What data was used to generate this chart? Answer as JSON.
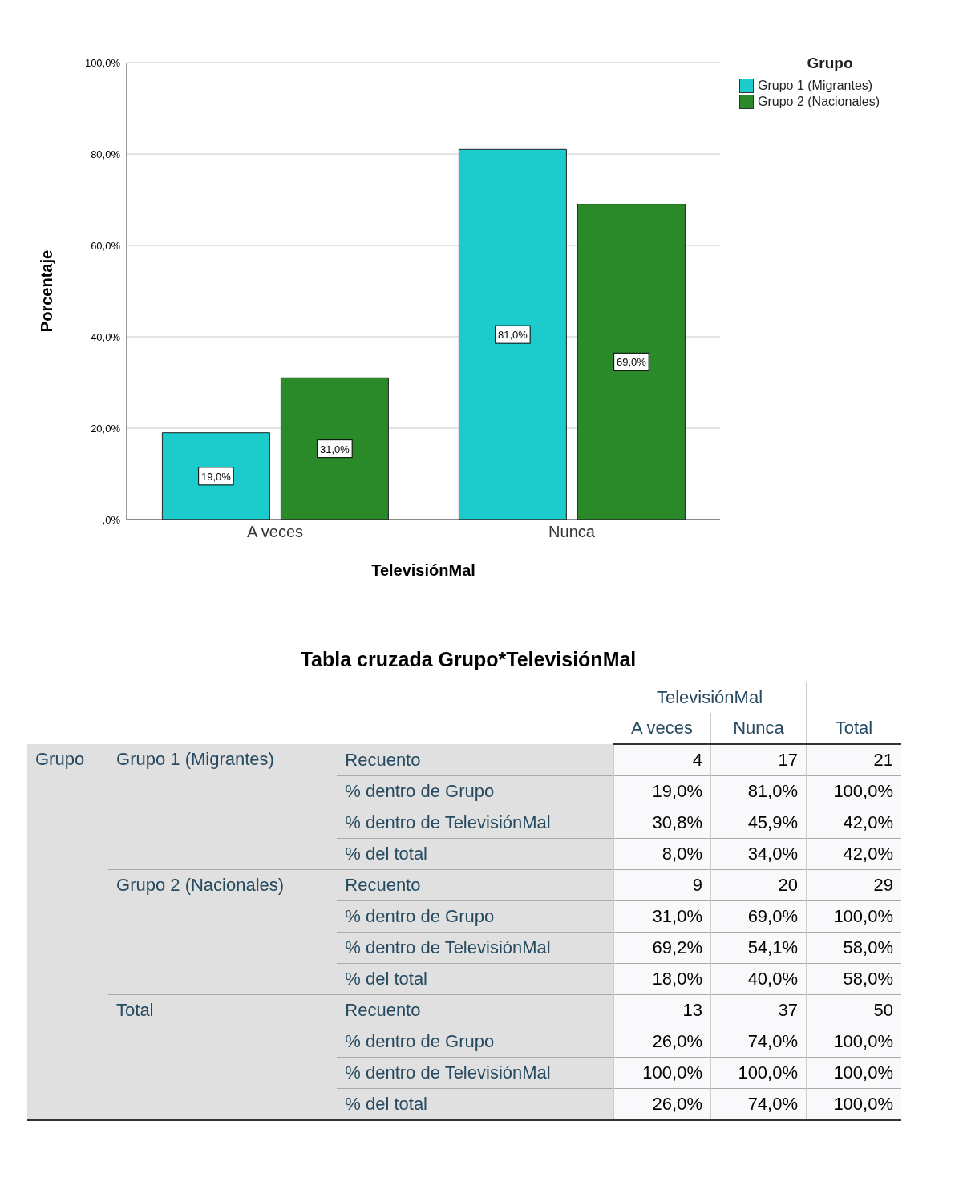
{
  "chart_data": [
    {
      "type": "bar",
      "xlabel": "TelevisiónMal",
      "ylabel": "Porcentaje",
      "legend_title": "Grupo",
      "legend": "top right",
      "grid": "y",
      "categories": [
        "A veces",
        "Nunca"
      ],
      "ylim": [
        0,
        100
      ],
      "yticks": [
        {
          "value": 0,
          "label": ",0%"
        },
        {
          "value": 20,
          "label": "20,0%"
        },
        {
          "value": 40,
          "label": "40,0%"
        },
        {
          "value": 60,
          "label": "60,0%"
        },
        {
          "value": 80,
          "label": "80,0%"
        },
        {
          "value": 100,
          "label": "100,0%"
        }
      ],
      "series": [
        {
          "name": "Grupo 1 (Migrantes)",
          "color": "#1ccccc",
          "values": [
            19.0,
            81.0
          ],
          "value_labels": [
            "19,0%",
            "81,0%"
          ]
        },
        {
          "name": "Grupo 2 (Nacionales)",
          "color": "#2a8a2a",
          "values": [
            31.0,
            69.0
          ],
          "value_labels": [
            "31,0%",
            "69,0%"
          ]
        }
      ]
    },
    {
      "type": "other",
      "title": "Tabla cruzada Grupo*TelevisiónMal",
      "xlabel": "TelevisiónMal",
      "ylabel": "Grupo",
      "categories": [
        "A veces",
        "Nunca",
        "Total"
      ],
      "y_categories": [
        "Grupo 1 (Migrantes)",
        null,
        null,
        null,
        "Grupo 2 (Nacionales)",
        null,
        null,
        null,
        "Total",
        null,
        null,
        null
      ],
      "y2_categories": [
        "Recuento",
        "% dentro de Grupo",
        "% dentro de TelevisiónMal",
        "% del total",
        "Recuento",
        "% dentro de Grupo",
        "% dentro de TelevisiónMal",
        "% del total",
        "Recuento",
        "% dentro de Grupo",
        "% dentro de TelevisiónMal",
        "% del total"
      ],
      "cell_labels": [
        [
          "4",
          "17",
          "21"
        ],
        [
          "19,0%",
          "81,0%",
          "100,0%"
        ],
        [
          "30,8%",
          "45,9%",
          "42,0%"
        ],
        [
          "8,0%",
          "34,0%",
          "42,0%"
        ],
        [
          "9",
          "20",
          "29"
        ],
        [
          "31,0%",
          "69,0%",
          "100,0%"
        ],
        [
          "69,2%",
          "54,1%",
          "58,0%"
        ],
        [
          "18,0%",
          "40,0%",
          "58,0%"
        ],
        [
          "13",
          "37",
          "50"
        ],
        [
          "26,0%",
          "74,0%",
          "100,0%"
        ],
        [
          "100,0%",
          "100,0%",
          "100,0%"
        ],
        [
          "26,0%",
          "74,0%",
          "100,0%"
        ]
      ]
    }
  ]
}
